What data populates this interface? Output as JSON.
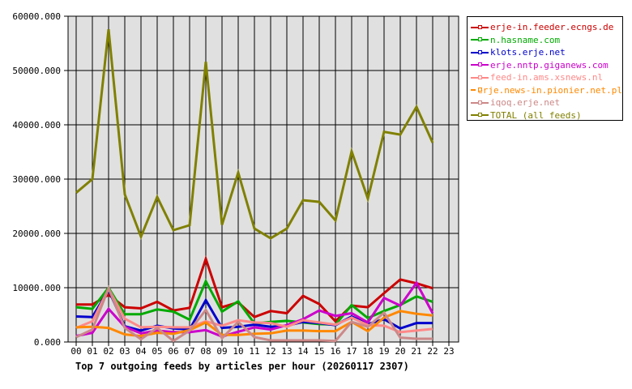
{
  "chart_data": {
    "type": "line",
    "title": "Top 7 outgoing feeds by articles per hour (20260117 2307)",
    "xlabel": "",
    "ylabel": "",
    "ylim": [
      0,
      60000
    ],
    "grid": true,
    "legend_position": "right",
    "y_ticks": [
      "0.000",
      "10000.000",
      "20000.000",
      "30000.000",
      "40000.000",
      "50000.000",
      "60000.000"
    ],
    "categories": [
      "00",
      "01",
      "02",
      "03",
      "04",
      "05",
      "06",
      "07",
      "08",
      "09",
      "10",
      "11",
      "12",
      "13",
      "14",
      "15",
      "16",
      "17",
      "18",
      "19",
      "20",
      "21",
      "22",
      "23"
    ],
    "series": [
      {
        "name": "erje-in.feeder.ecngs.de",
        "color": "#cc0000",
        "values": [
          6900,
          6900,
          8700,
          6400,
          6200,
          7400,
          5800,
          6300,
          15300,
          6400,
          7300,
          4600,
          5700,
          5300,
          8500,
          7000,
          3800,
          6700,
          6400,
          9000,
          11500,
          10800,
          9900
        ]
      },
      {
        "name": "n.hasname.com",
        "color": "#00aa00",
        "values": [
          6400,
          6100,
          10000,
          5100,
          5100,
          6000,
          5600,
          4100,
          11200,
          5600,
          7500,
          3400,
          3700,
          3900,
          3600,
          3300,
          3200,
          6800,
          4400,
          5700,
          6800,
          8400,
          7400
        ]
      },
      {
        "name": "klots.erje.net",
        "color": "#0000cc",
        "values": [
          4700,
          4600,
          9600,
          2900,
          2100,
          3000,
          2500,
          2300,
          7700,
          2600,
          2800,
          3200,
          2800,
          3000,
          3700,
          3500,
          3100,
          4700,
          3300,
          4200,
          2500,
          3500,
          3500
        ]
      },
      {
        "name": "erje.nntp.giganews.com",
        "color": "#cc00cc",
        "values": [
          1100,
          1700,
          6100,
          2800,
          1600,
          2100,
          1800,
          1800,
          2200,
          1000,
          1900,
          2700,
          2300,
          3100,
          4200,
          5800,
          4800,
          5300,
          3600,
          8100,
          6700,
          10900,
          5300
        ]
      },
      {
        "name": "feed-in.ams.xsnews.nl",
        "color": "#ff8888",
        "values": [
          2600,
          3800,
          9800,
          4300,
          2700,
          2800,
          2700,
          2700,
          3800,
          3000,
          4000,
          3600,
          3500,
          2800,
          4000,
          3600,
          3200,
          4500,
          3100,
          3000,
          1800,
          2100,
          2400
        ]
      },
      {
        "name": "erje.news-in.pionier.net.pl",
        "color": "#ff8800",
        "values": [
          2700,
          2800,
          2600,
          1400,
          1100,
          1700,
          1500,
          2200,
          3600,
          1300,
          1300,
          1500,
          1600,
          2100,
          2100,
          2000,
          2000,
          3700,
          2000,
          4500,
          5700,
          5200,
          4900
        ]
      },
      {
        "name": "iqoq.erje.net",
        "color": "#cc8888",
        "values": [
          900,
          2300,
          9900,
          2600,
          500,
          2600,
          200,
          2100,
          5900,
          700,
          3700,
          900,
          300,
          300,
          300,
          300,
          200,
          3700,
          2800,
          5400,
          800,
          600,
          600
        ]
      },
      {
        "name": "TOTAL (all feeds)",
        "color": "#808000",
        "values": [
          27500,
          30000,
          57600,
          27200,
          19400,
          26700,
          20600,
          21500,
          51600,
          21600,
          31200,
          20900,
          19100,
          20900,
          26100,
          25800,
          22400,
          35100,
          26400,
          38700,
          38200,
          43300,
          36700
        ]
      }
    ]
  }
}
